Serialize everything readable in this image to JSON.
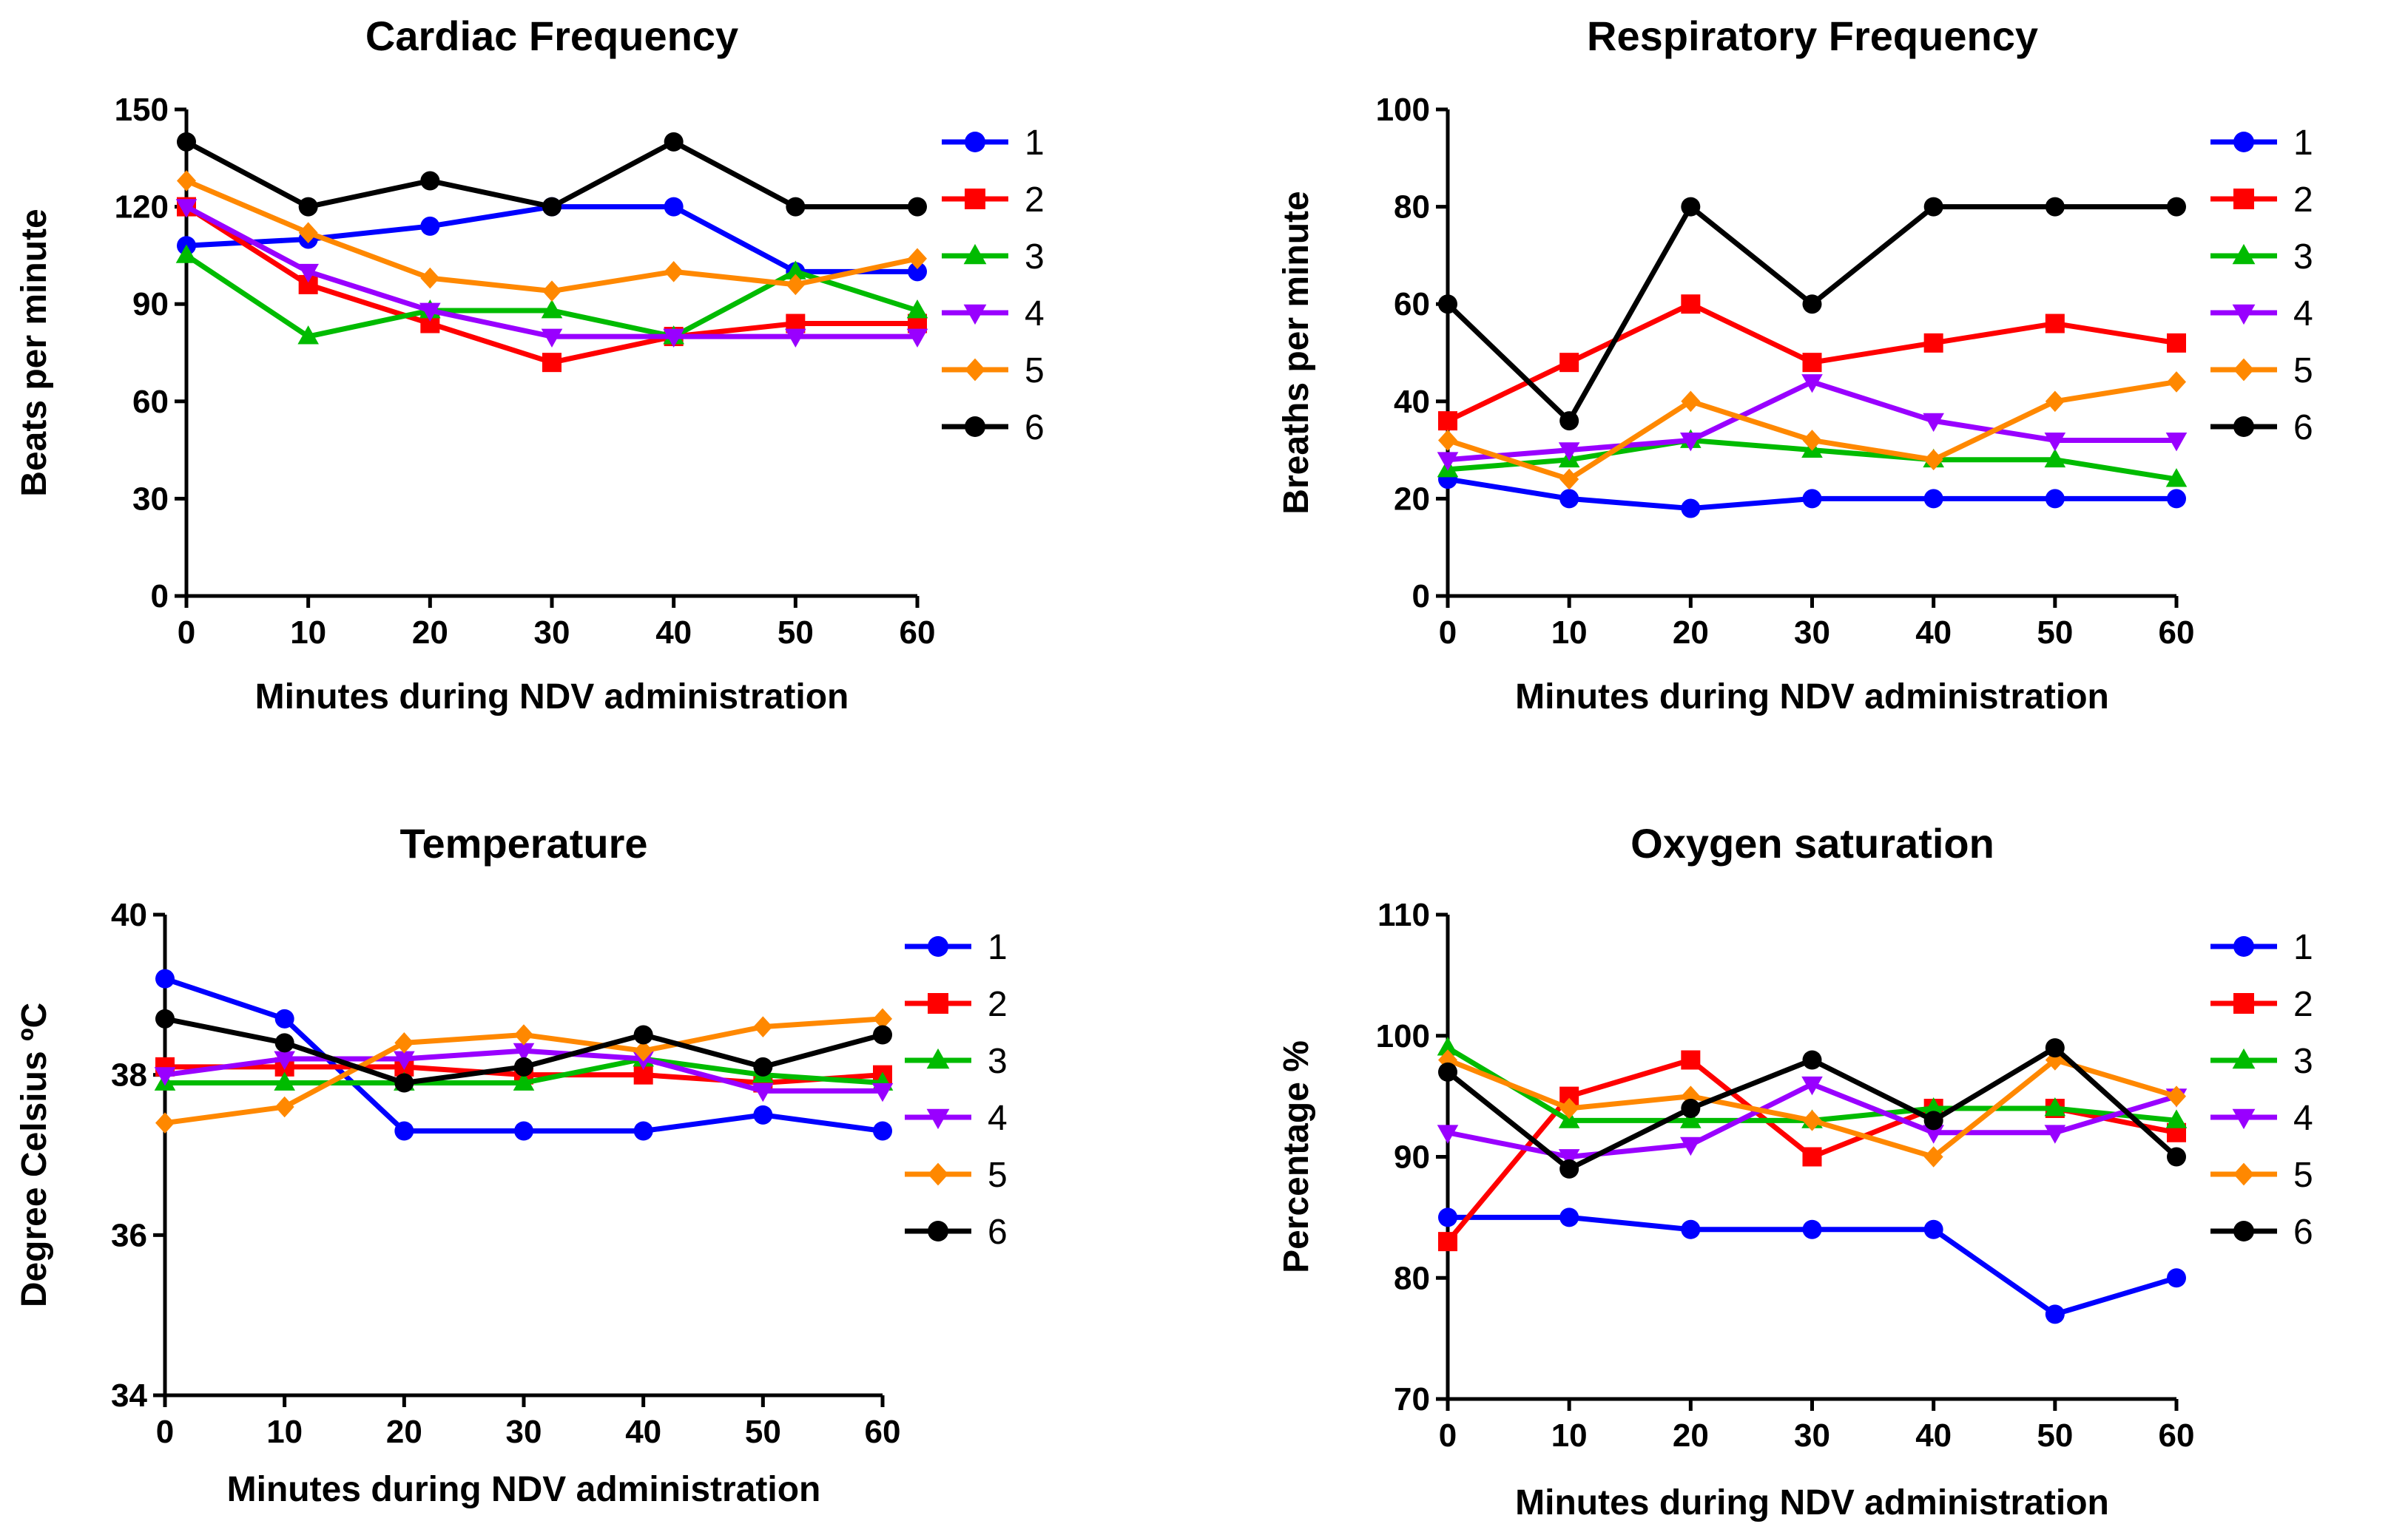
{
  "chart_data": [
    {
      "type": "line",
      "title": "Cardiac Frequency",
      "xlabel": "Minutes during NDV administration",
      "ylabel": "Beats per minute",
      "x": [
        0,
        10,
        20,
        30,
        40,
        50,
        60
      ],
      "xlim": [
        0,
        60
      ],
      "ylim": [
        0,
        150
      ],
      "xticks": [
        0,
        10,
        20,
        30,
        40,
        50,
        60
      ],
      "yticks": [
        0,
        30,
        60,
        90,
        120,
        150
      ],
      "legend_position": "right",
      "series": [
        {
          "name": "1",
          "color": "#0000ff",
          "marker": "circle",
          "values": [
            108,
            110,
            114,
            120,
            120,
            100,
            100
          ]
        },
        {
          "name": "2",
          "color": "#ff0000",
          "marker": "square",
          "values": [
            120,
            96,
            84,
            72,
            80,
            84,
            84
          ]
        },
        {
          "name": "3",
          "color": "#00bb00",
          "marker": "triangle-up",
          "values": [
            105,
            80,
            88,
            88,
            80,
            100,
            88
          ]
        },
        {
          "name": "4",
          "color": "#9900ff",
          "marker": "triangle-down",
          "values": [
            120,
            100,
            88,
            80,
            80,
            80,
            80
          ]
        },
        {
          "name": "5",
          "color": "#ff8800",
          "marker": "diamond",
          "values": [
            128,
            112,
            98,
            94,
            100,
            96,
            104
          ]
        },
        {
          "name": "6",
          "color": "#000000",
          "marker": "circle",
          "values": [
            140,
            120,
            128,
            120,
            140,
            120,
            120
          ]
        }
      ]
    },
    {
      "type": "line",
      "title": "Respiratory Frequency",
      "xlabel": "Minutes during NDV administration",
      "ylabel": "Breaths per minute",
      "x": [
        0,
        10,
        20,
        30,
        40,
        50,
        60
      ],
      "xlim": [
        0,
        60
      ],
      "ylim": [
        0,
        100
      ],
      "xticks": [
        0,
        10,
        20,
        30,
        40,
        50,
        60
      ],
      "yticks": [
        0,
        20,
        40,
        60,
        80,
        100
      ],
      "legend_position": "right",
      "series": [
        {
          "name": "1",
          "color": "#0000ff",
          "marker": "circle",
          "values": [
            24,
            20,
            18,
            20,
            20,
            20,
            20
          ]
        },
        {
          "name": "2",
          "color": "#ff0000",
          "marker": "square",
          "values": [
            36,
            48,
            60,
            48,
            52,
            56,
            52
          ]
        },
        {
          "name": "3",
          "color": "#00bb00",
          "marker": "triangle-up",
          "values": [
            26,
            28,
            32,
            30,
            28,
            28,
            24
          ]
        },
        {
          "name": "4",
          "color": "#9900ff",
          "marker": "triangle-down",
          "values": [
            28,
            30,
            32,
            44,
            36,
            32,
            32
          ]
        },
        {
          "name": "5",
          "color": "#ff8800",
          "marker": "diamond",
          "values": [
            32,
            24,
            40,
            32,
            28,
            40,
            44
          ]
        },
        {
          "name": "6",
          "color": "#000000",
          "marker": "circle",
          "values": [
            60,
            36,
            80,
            60,
            80,
            80,
            80
          ]
        }
      ]
    },
    {
      "type": "line",
      "title": "Temperature",
      "xlabel": "Minutes during NDV administration",
      "ylabel": "Degree Celsius ºC",
      "x": [
        0,
        10,
        20,
        30,
        40,
        50,
        60
      ],
      "xlim": [
        0,
        60
      ],
      "ylim": [
        34,
        40
      ],
      "xticks": [
        0,
        10,
        20,
        30,
        40,
        50,
        60
      ],
      "yticks": [
        34,
        36,
        38,
        40
      ],
      "legend_position": "right",
      "series": [
        {
          "name": "1",
          "color": "#0000ff",
          "marker": "circle",
          "values": [
            39.2,
            38.7,
            37.3,
            37.3,
            37.3,
            37.5,
            37.3
          ]
        },
        {
          "name": "2",
          "color": "#ff0000",
          "marker": "square",
          "values": [
            38.1,
            38.1,
            38.1,
            38.0,
            38.0,
            37.9,
            38.0
          ]
        },
        {
          "name": "3",
          "color": "#00bb00",
          "marker": "triangle-up",
          "values": [
            37.9,
            37.9,
            37.9,
            37.9,
            38.2,
            38.0,
            37.9
          ]
        },
        {
          "name": "4",
          "color": "#9900ff",
          "marker": "triangle-down",
          "values": [
            38.0,
            38.2,
            38.2,
            38.3,
            38.2,
            37.8,
            37.8
          ]
        },
        {
          "name": "5",
          "color": "#ff8800",
          "marker": "diamond",
          "values": [
            37.4,
            37.6,
            38.4,
            38.5,
            38.3,
            38.6,
            38.7
          ]
        },
        {
          "name": "6",
          "color": "#000000",
          "marker": "circle",
          "values": [
            38.7,
            38.4,
            37.9,
            38.1,
            38.5,
            38.1,
            38.5
          ]
        }
      ]
    },
    {
      "type": "line",
      "title": "Oxygen saturation",
      "xlabel": "Minutes during NDV administration",
      "ylabel": "Percentage %",
      "x": [
        0,
        10,
        20,
        30,
        40,
        50,
        60
      ],
      "xlim": [
        0,
        60
      ],
      "ylim": [
        70,
        110
      ],
      "xticks": [
        0,
        10,
        20,
        30,
        40,
        50,
        60
      ],
      "yticks": [
        70,
        80,
        90,
        100,
        110
      ],
      "legend_position": "right",
      "series": [
        {
          "name": "1",
          "color": "#0000ff",
          "marker": "circle",
          "values": [
            85,
            85,
            84,
            84,
            84,
            77,
            80
          ]
        },
        {
          "name": "2",
          "color": "#ff0000",
          "marker": "square",
          "values": [
            83,
            95,
            98,
            90,
            94,
            94,
            92
          ]
        },
        {
          "name": "3",
          "color": "#00bb00",
          "marker": "triangle-up",
          "values": [
            99,
            93,
            93,
            93,
            94,
            94,
            93
          ]
        },
        {
          "name": "4",
          "color": "#9900ff",
          "marker": "triangle-down",
          "values": [
            92,
            90,
            91,
            96,
            92,
            92,
            95
          ]
        },
        {
          "name": "5",
          "color": "#ff8800",
          "marker": "diamond",
          "values": [
            98,
            94,
            95,
            93,
            90,
            98,
            95
          ]
        },
        {
          "name": "6",
          "color": "#000000",
          "marker": "circle",
          "values": [
            97,
            89,
            94,
            98,
            93,
            99,
            90
          ]
        }
      ]
    }
  ]
}
